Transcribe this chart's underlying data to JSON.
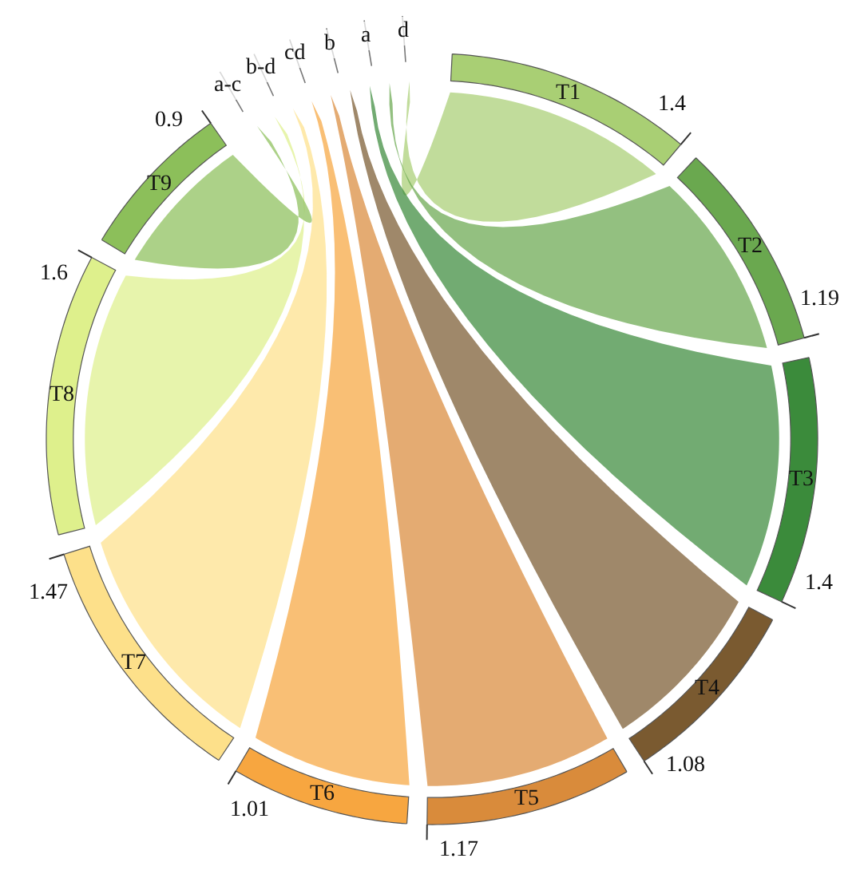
{
  "chart_data": {
    "type": "other",
    "categories": [
      "T1",
      "T2",
      "T3",
      "T4",
      "T5",
      "T6",
      "T7",
      "T8",
      "T9"
    ],
    "values": [
      1.4,
      1.19,
      1.4,
      1.08,
      1.17,
      1.01,
      1.47,
      1.6,
      0.9
    ],
    "value_labels": [
      "1.4",
      "1.19",
      "1.4",
      "1.08",
      "1.17",
      "1.01",
      "1.47",
      "1.6",
      "0.9"
    ],
    "colors": [
      "#a9cf74",
      "#6aa84f",
      "#3b8b3b",
      "#7a5a30",
      "#d98b3b",
      "#f7a640",
      "#fde08a",
      "#def08c",
      "#8cbf5a"
    ],
    "annotations": [
      "d",
      "a",
      "b",
      "cd",
      "b-d",
      "a-c"
    ]
  }
}
